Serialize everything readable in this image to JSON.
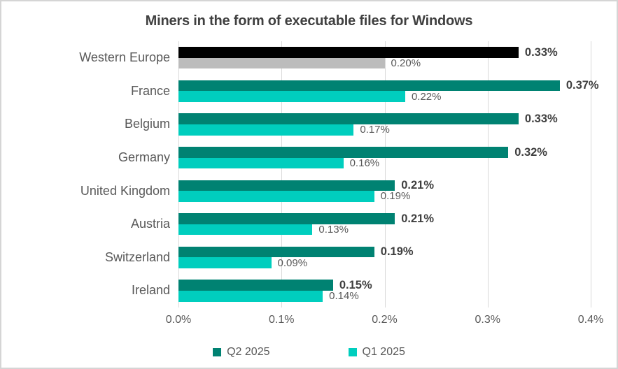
{
  "title": "Miners in the form of executable files for Windows",
  "colors": {
    "q2_series": "#008272",
    "q1_series": "#00CEBE",
    "q2_highlight_western_europe": "#000000",
    "q1_highlight_western_europe": "#BCBCBC",
    "gridline": "#D9D9D9",
    "title_text": "#404040",
    "axis_text": "#595959",
    "value_strong_text": "#3F3F3F",
    "frame_border": "#D5D5D5"
  },
  "chart_data": {
    "type": "bar",
    "orientation": "horizontal",
    "title": "Miners in the form of executable files for Windows",
    "categories": [
      "Western Europe",
      "France",
      "Belgium",
      "Germany",
      "United Kingdom",
      "Austria",
      "Switzerland",
      "Ireland"
    ],
    "series": [
      {
        "name": "Q2 2025",
        "color": "#008272",
        "first_category_color": "#000000",
        "values": [
          0.33,
          0.37,
          0.33,
          0.32,
          0.21,
          0.21,
          0.19,
          0.15
        ],
        "labels": [
          "0.33%",
          "0.37%",
          "0.33%",
          "0.32%",
          "0.21%",
          "0.21%",
          "0.19%",
          "0.15%"
        ]
      },
      {
        "name": "Q1 2025",
        "color": "#00CEBE",
        "first_category_color": "#BCBCBC",
        "values": [
          0.2,
          0.22,
          0.17,
          0.16,
          0.19,
          0.13,
          0.09,
          0.14
        ],
        "labels": [
          "0.20%",
          "0.22%",
          "0.17%",
          "0.16%",
          "0.19%",
          "0.13%",
          "0.09%",
          "0.14%"
        ]
      }
    ],
    "xlabel": "",
    "ylabel": "",
    "xlim": [
      0,
      0.4
    ],
    "x_ticks": [
      "0.0%",
      "0.1%",
      "0.2%",
      "0.3%",
      "0.4%"
    ],
    "grid": true,
    "legend_position": "bottom",
    "value_labels_shown": true
  }
}
